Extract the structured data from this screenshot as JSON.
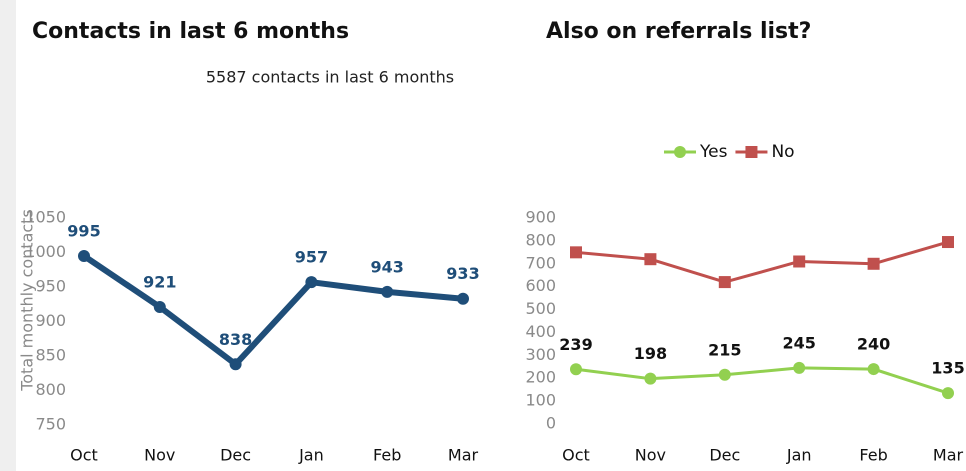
{
  "chart_data": [
    {
      "type": "line",
      "title": "Contacts in last 6 months",
      "subtitle": "5587 contacts in last 6 months",
      "y_label": "Total monthly contacts",
      "categories": [
        "Oct",
        "Nov",
        "Dec",
        "Jan",
        "Feb",
        "Mar"
      ],
      "series": [
        {
          "name": "Total monthly contacts",
          "color": "#1f4e79",
          "values": [
            995,
            921,
            838,
            957,
            943,
            933
          ],
          "marker": "circle",
          "data_labels": true
        }
      ],
      "ylim": [
        750,
        1050
      ],
      "yticks": [
        750,
        800,
        850,
        900,
        950,
        1000,
        1050
      ],
      "grid": false
    },
    {
      "type": "line",
      "title": "Also on referrals list?",
      "categories": [
        "Oct",
        "Nov",
        "Dec",
        "Jan",
        "Feb",
        "Mar"
      ],
      "series": [
        {
          "name": "Yes",
          "color": "#92d050",
          "values": [
            239,
            198,
            215,
            245,
            240,
            135
          ],
          "marker": "circle",
          "data_labels": true
        },
        {
          "name": "No",
          "color": "#c0504d",
          "values": [
            750,
            720,
            620,
            710,
            700,
            795
          ],
          "marker": "square",
          "data_labels": false
        }
      ],
      "ylim": [
        0,
        900
      ],
      "yticks": [
        0,
        100,
        200,
        300,
        400,
        500,
        600,
        700,
        800,
        900
      ],
      "grid": false,
      "legend": "top"
    }
  ]
}
